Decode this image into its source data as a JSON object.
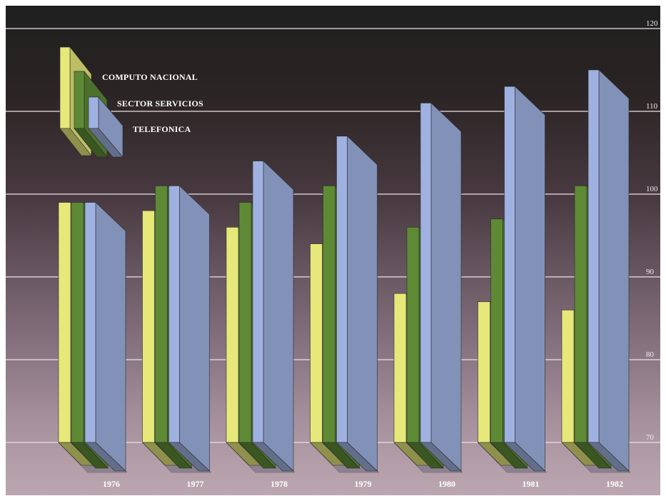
{
  "chart_data": {
    "type": "bar",
    "title": "",
    "xlabel": "",
    "ylabel": "",
    "categories": [
      "1976",
      "1977",
      "1978",
      "1979",
      "1980",
      "1981",
      "1982"
    ],
    "series": [
      {
        "name": "COMPUTO NACIONAL",
        "color": "#e6e87a",
        "values": [
          99,
          98,
          96,
          94,
          88,
          87,
          86
        ]
      },
      {
        "name": "SECTOR SERVICIOS",
        "color": "#5e8a36",
        "values": [
          99,
          101,
          99,
          101,
          96,
          97,
          101
        ]
      },
      {
        "name": "TELEFONICA",
        "color": "#9fb1e0",
        "values": [
          99,
          101,
          104,
          107,
          111,
          113,
          115
        ]
      }
    ],
    "y_ticks": [
      "120",
      "110",
      "100",
      "90",
      "80",
      "70"
    ],
    "ylim": [
      70,
      120
    ],
    "grid": true,
    "legend_position": "top-left"
  }
}
